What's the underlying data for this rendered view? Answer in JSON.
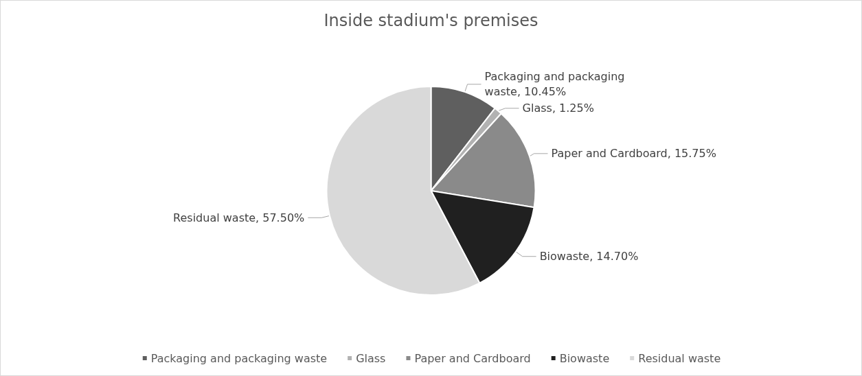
{
  "chart_data": {
    "type": "pie",
    "title": "Inside stadium's premises",
    "categories": [
      "Packaging and packaging waste",
      "Glass",
      "Paper and Cardboard",
      "Biowaste",
      "Residual waste"
    ],
    "values": [
      10.45,
      1.25,
      15.75,
      14.7,
      57.5
    ],
    "value_labels": [
      "Packaging and packaging waste, 10.45%",
      "Glass, 1.25%",
      "Paper and Cardboard, 15.75%",
      "Biowaste, 14.70%",
      "Residual waste, 57.50%"
    ],
    "colors": [
      "#5f5f5f",
      "#b2b2b2",
      "#8a8a8a",
      "#202020",
      "#d9d9d9"
    ],
    "legend": "bottom"
  }
}
